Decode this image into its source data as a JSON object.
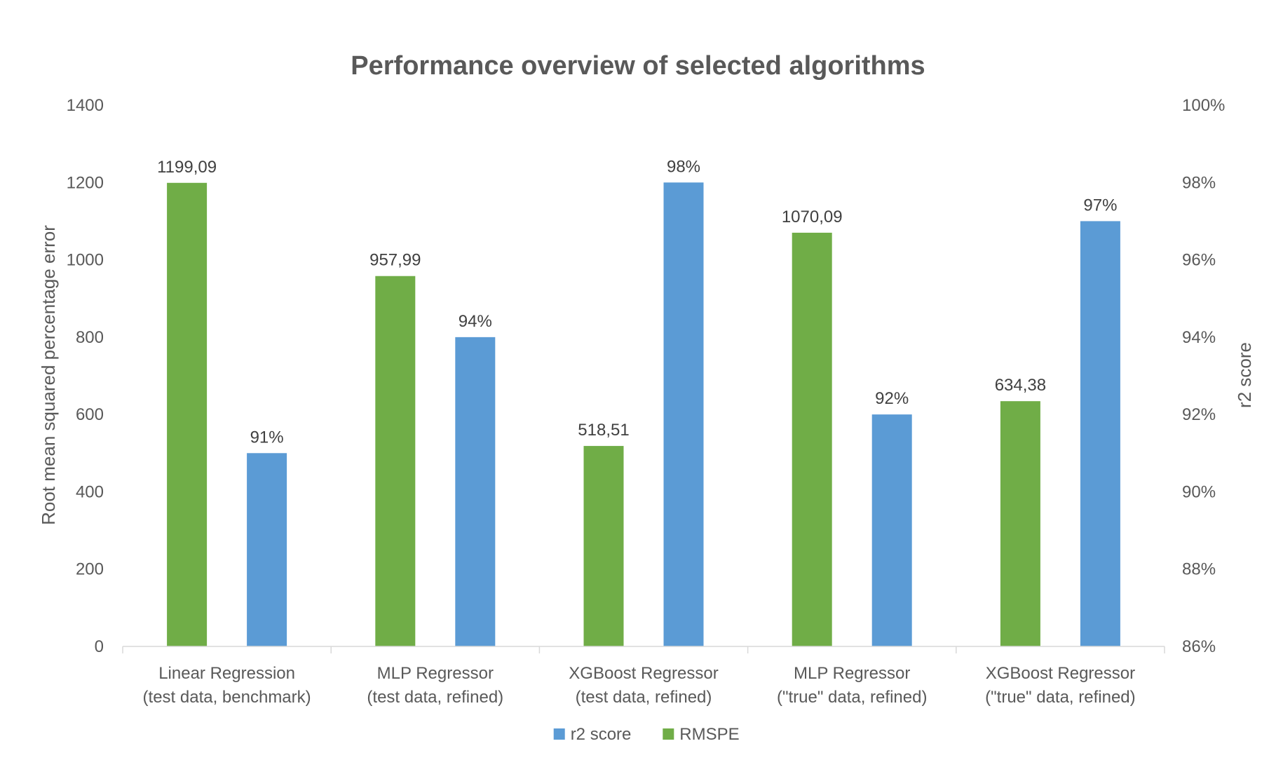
{
  "chart_data": {
    "type": "bar",
    "title": "Performance overview of selected algorithms",
    "categories": [
      [
        "Linear Regression",
        "(test data, benchmark)"
      ],
      [
        "MLP Regressor",
        "(test data, refined)"
      ],
      [
        "XGBoost Regressor",
        "(test data, refined)"
      ],
      [
        "MLP Regressor",
        "(\"true\" data, refined)"
      ],
      [
        "XGBoost Regressor",
        "(\"true\" data, refined)"
      ]
    ],
    "series": [
      {
        "name": "RMSPE",
        "axis": "left",
        "color": "#70ad47",
        "values": [
          1199.09,
          957.99,
          518.51,
          1070.09,
          634.38
        ],
        "labels": [
          "1199,09",
          "957,99",
          "518,51",
          "1070,09",
          "634,38"
        ]
      },
      {
        "name": "r2 score",
        "axis": "right",
        "color": "#5b9bd5",
        "values": [
          0.91,
          0.94,
          0.98,
          0.92,
          0.97
        ],
        "labels": [
          "91%",
          "94%",
          "98%",
          "92%",
          "97%"
        ]
      }
    ],
    "y_left": {
      "label": "Root mean squared percentage error",
      "range": [
        0,
        1400
      ],
      "ticks": [
        "0",
        "200",
        "400",
        "600",
        "800",
        "1000",
        "1200",
        "1400"
      ]
    },
    "y_right": {
      "label": "r2 score",
      "range": [
        0.86,
        1.0
      ],
      "ticks": [
        "86%",
        "88%",
        "90%",
        "92%",
        "94%",
        "96%",
        "98%",
        "100%"
      ]
    },
    "legend": {
      "placement": "bottom",
      "order": [
        "r2 score",
        "RMSPE"
      ]
    },
    "grid": false
  }
}
